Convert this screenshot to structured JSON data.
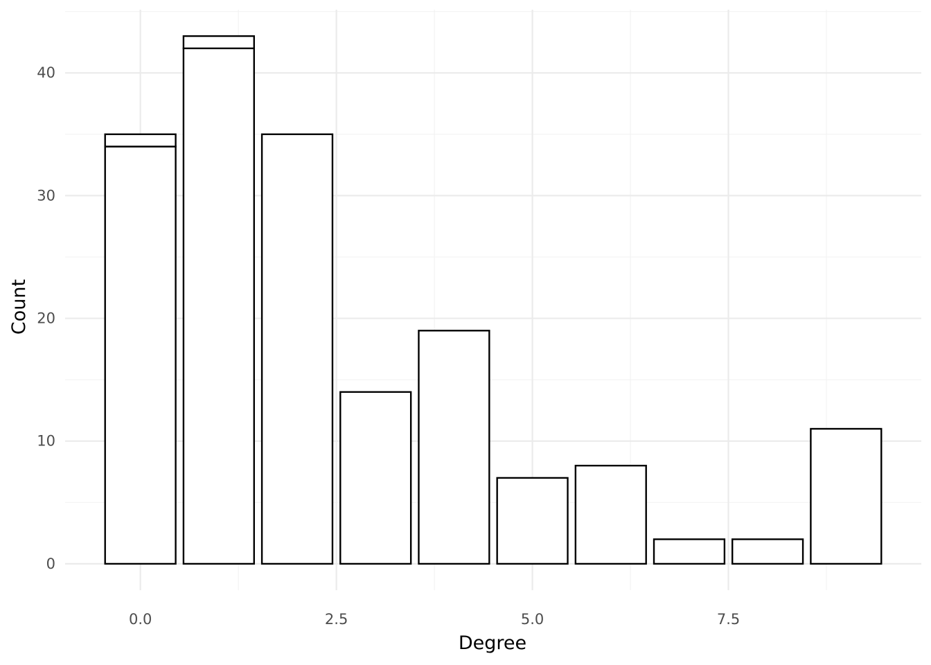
{
  "chart_data": {
    "type": "bar",
    "xlabel": "Degree",
    "ylabel": "Count",
    "x": [
      0,
      1,
      2,
      3,
      4,
      5,
      6,
      7,
      8,
      9
    ],
    "series": [
      {
        "values": [
          34,
          42,
          35,
          14,
          19,
          7,
          8,
          2,
          2,
          11
        ]
      },
      {
        "values": [
          1,
          1,
          0,
          0,
          0,
          0,
          0,
          0,
          0,
          0
        ]
      }
    ],
    "totals": [
      35,
      43,
      35,
      14,
      19,
      7,
      8,
      2,
      2,
      11
    ],
    "xlim": [
      -0.96,
      9.96
    ],
    "ylim": [
      -2.15,
      45.15
    ],
    "x_ticks": [
      0,
      2.5,
      5,
      7.5
    ],
    "x_tick_labels": [
      "0.0",
      "2.5",
      "5.0",
      "7.5"
    ],
    "y_ticks": [
      0,
      10,
      20,
      30,
      40
    ],
    "y_tick_labels": [
      "0",
      "10",
      "20",
      "30",
      "40"
    ],
    "bar_width": 0.9,
    "fill_color": "#ffffff",
    "outline_color": "#000000",
    "grid": true,
    "legend": "none"
  }
}
